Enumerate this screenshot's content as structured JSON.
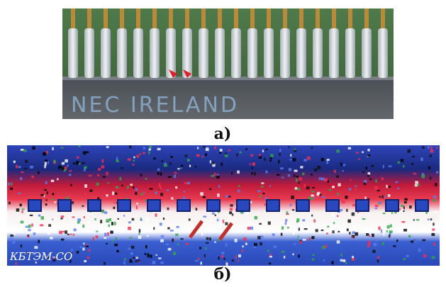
{
  "panels": [
    {
      "label": "а)",
      "image_text": "NEC IRELAND"
    },
    {
      "label": "б)",
      "image_text": "КБТЭМ-СО"
    }
  ]
}
